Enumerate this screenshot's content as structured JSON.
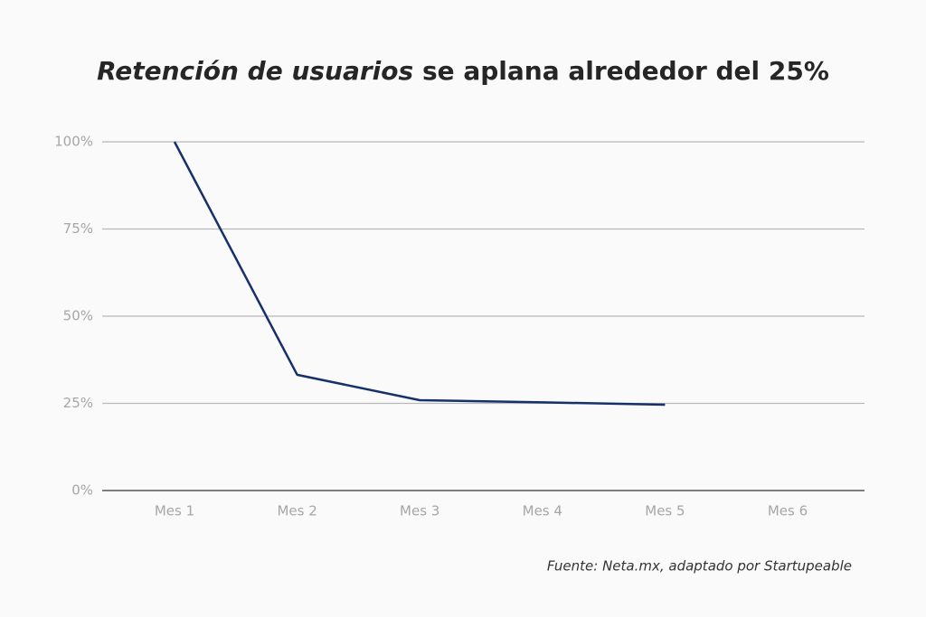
{
  "chart_data": {
    "type": "line",
    "title": [
      "Retención de usuarios",
      "se aplana alrededor del 25%"
    ],
    "categories": [
      "Mes 1",
      "Mes 2",
      "Mes 3",
      "Mes 4",
      "Mes 5",
      "Mes 6"
    ],
    "series": [
      {
        "color": "#15306a",
        "values": [
          100,
          33.2,
          25.9,
          25.3,
          24.6,
          null
        ]
      }
    ],
    "ylim": [
      0,
      100
    ],
    "yticks": [
      {
        "value": 0,
        "label": "0%"
      },
      {
        "value": 25,
        "label": "25%"
      },
      {
        "value": 50,
        "label": "50%"
      },
      {
        "value": 75,
        "label": "75%"
      },
      {
        "value": 100,
        "label": "100%"
      }
    ],
    "grid": true,
    "source": "Fuente: Neta.mx, adaptado por Startupeable"
  }
}
